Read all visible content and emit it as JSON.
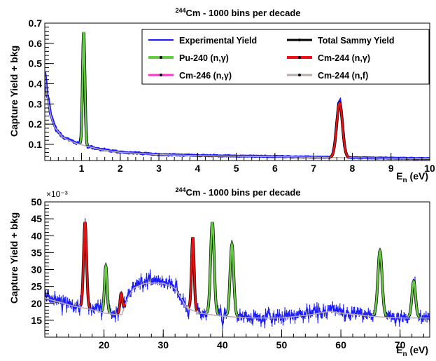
{
  "panels": [
    {
      "title_super": "244",
      "title_rest": "Cm - 1000 bins per decade",
      "ylabel": "Capture Yield + bkg",
      "xlabel_main": "E",
      "xlabel_sub": "n",
      "xlabel_unit": " (eV)",
      "exponent_label": ""
    },
    {
      "title_super": "244",
      "title_rest": "Cm - 1000 bins per decade",
      "ylabel": "Capture Yield + bkg",
      "xlabel_main": "E",
      "xlabel_sub": "n",
      "xlabel_unit": " (eV)",
      "exponent_label": "×10⁻³"
    }
  ],
  "legend": [
    {
      "label": "Experimental Yield",
      "color": "#1a1aff"
    },
    {
      "label": "Total Sammy Yield",
      "color": "#000000"
    },
    {
      "label": "Pu-240 (n,γ)",
      "color": "#66cc44"
    },
    {
      "label": "Cm-244 (n,γ)",
      "color": "#ee1111"
    },
    {
      "label": "Cm-246 (n,γ)",
      "color": "#ff33cc"
    },
    {
      "label": "Cm-244 (n,f)",
      "color": "#bbaaaa"
    }
  ],
  "chart_data": [
    {
      "type": "line",
      "title": "244Cm - 1000 bins per decade",
      "xlabel": "En (eV)",
      "ylabel": "Capture Yield + bkg",
      "xlim": [
        0.05,
        10
      ],
      "ylim": [
        0.02,
        0.7
      ],
      "xticks": [
        1,
        2,
        3,
        4,
        5,
        6,
        7,
        8,
        9,
        10
      ],
      "yticks": [
        0.1,
        0.2,
        0.3,
        0.4,
        0.5,
        0.6,
        0.7
      ],
      "legend_position": "top-right",
      "background": {
        "points": [
          [
            0.05,
            0.46
          ],
          [
            0.1,
            0.36
          ],
          [
            0.2,
            0.25
          ],
          [
            0.3,
            0.19
          ],
          [
            0.5,
            0.14
          ],
          [
            0.7,
            0.12
          ],
          [
            0.9,
            0.105
          ],
          [
            1.2,
            0.09
          ],
          [
            1.5,
            0.075
          ],
          [
            2,
            0.062
          ],
          [
            3,
            0.05
          ],
          [
            4,
            0.045
          ],
          [
            5,
            0.042
          ],
          [
            6,
            0.04
          ],
          [
            7,
            0.037
          ],
          [
            8,
            0.034
          ],
          [
            9,
            0.032
          ],
          [
            10,
            0.03
          ]
        ]
      },
      "resonances": [
        {
          "energy": 1.056,
          "peak": 0.655,
          "width": 0.03,
          "color": "#66cc44"
        },
        {
          "energy": 7.67,
          "peak": 0.305,
          "width": 0.075,
          "color": "#ee1111"
        }
      ],
      "series": [
        {
          "name": "Experimental Yield",
          "color": "#1a1aff"
        },
        {
          "name": "Total Sammy Yield",
          "color": "#000000"
        },
        {
          "name": "Pu-240 (n,γ)",
          "color": "#66cc44"
        },
        {
          "name": "Cm-244 (n,γ)",
          "color": "#ee1111"
        },
        {
          "name": "Cm-246 (n,γ)",
          "color": "#ff33cc"
        },
        {
          "name": "Cm-244 (n,f)",
          "color": "#bbaaaa"
        }
      ]
    },
    {
      "type": "line",
      "title": "244Cm - 1000 bins per decade",
      "xlabel": "En (eV)",
      "ylabel": "Capture Yield + bkg",
      "y_scale_factor": "×10^-3",
      "xlim": [
        10,
        75
      ],
      "ylim": [
        10,
        50
      ],
      "xticks": [
        20,
        30,
        40,
        50,
        60,
        70
      ],
      "yticks": [
        15,
        20,
        25,
        30,
        35,
        40,
        45,
        50
      ],
      "background": {
        "points": [
          [
            10,
            22
          ],
          [
            12,
            21
          ],
          [
            15,
            19.5
          ],
          [
            18,
            18.5
          ],
          [
            20,
            17.5
          ],
          [
            22,
            17
          ],
          [
            23,
            17
          ],
          [
            24,
            22
          ],
          [
            25,
            25
          ],
          [
            27,
            26.5
          ],
          [
            30,
            26.5
          ],
          [
            32,
            25
          ],
          [
            33,
            22
          ],
          [
            34,
            19
          ],
          [
            36,
            17.5
          ],
          [
            40,
            16.5
          ],
          [
            45,
            16
          ],
          [
            50,
            16
          ],
          [
            55,
            17
          ],
          [
            58,
            18
          ],
          [
            60,
            17.5
          ],
          [
            65,
            16.5
          ],
          [
            70,
            16
          ],
          [
            75,
            16
          ]
        ]
      },
      "resonances": [
        {
          "energy": 16.8,
          "peak": 44,
          "width": 0.25,
          "color": "#ee1111"
        },
        {
          "energy": 20.3,
          "peak": 31,
          "width": 0.22,
          "color": "#66cc44"
        },
        {
          "energy": 22.9,
          "peak": 23,
          "width": 0.2,
          "color": "#ee1111"
        },
        {
          "energy": 35.0,
          "peak": 39.5,
          "width": 0.22,
          "color": "#ee1111"
        },
        {
          "energy": 38.3,
          "peak": 44,
          "width": 0.3,
          "color": "#66cc44"
        },
        {
          "energy": 41.6,
          "peak": 37.5,
          "width": 0.3,
          "color": "#66cc44"
        },
        {
          "energy": 66.6,
          "peak": 35.5,
          "width": 0.35,
          "color": "#66cc44"
        },
        {
          "energy": 72.3,
          "peak": 26.5,
          "width": 0.3,
          "color": "#66cc44"
        }
      ],
      "series": [
        {
          "name": "Experimental Yield",
          "color": "#1a1aff"
        },
        {
          "name": "Total Sammy Yield",
          "color": "#000000"
        },
        {
          "name": "Pu-240 (n,γ)",
          "color": "#66cc44"
        },
        {
          "name": "Cm-244 (n,γ)",
          "color": "#ee1111"
        },
        {
          "name": "Cm-246 (n,γ)",
          "color": "#ff33cc"
        },
        {
          "name": "Cm-244 (n,f)",
          "color": "#bbaaaa"
        }
      ]
    }
  ]
}
